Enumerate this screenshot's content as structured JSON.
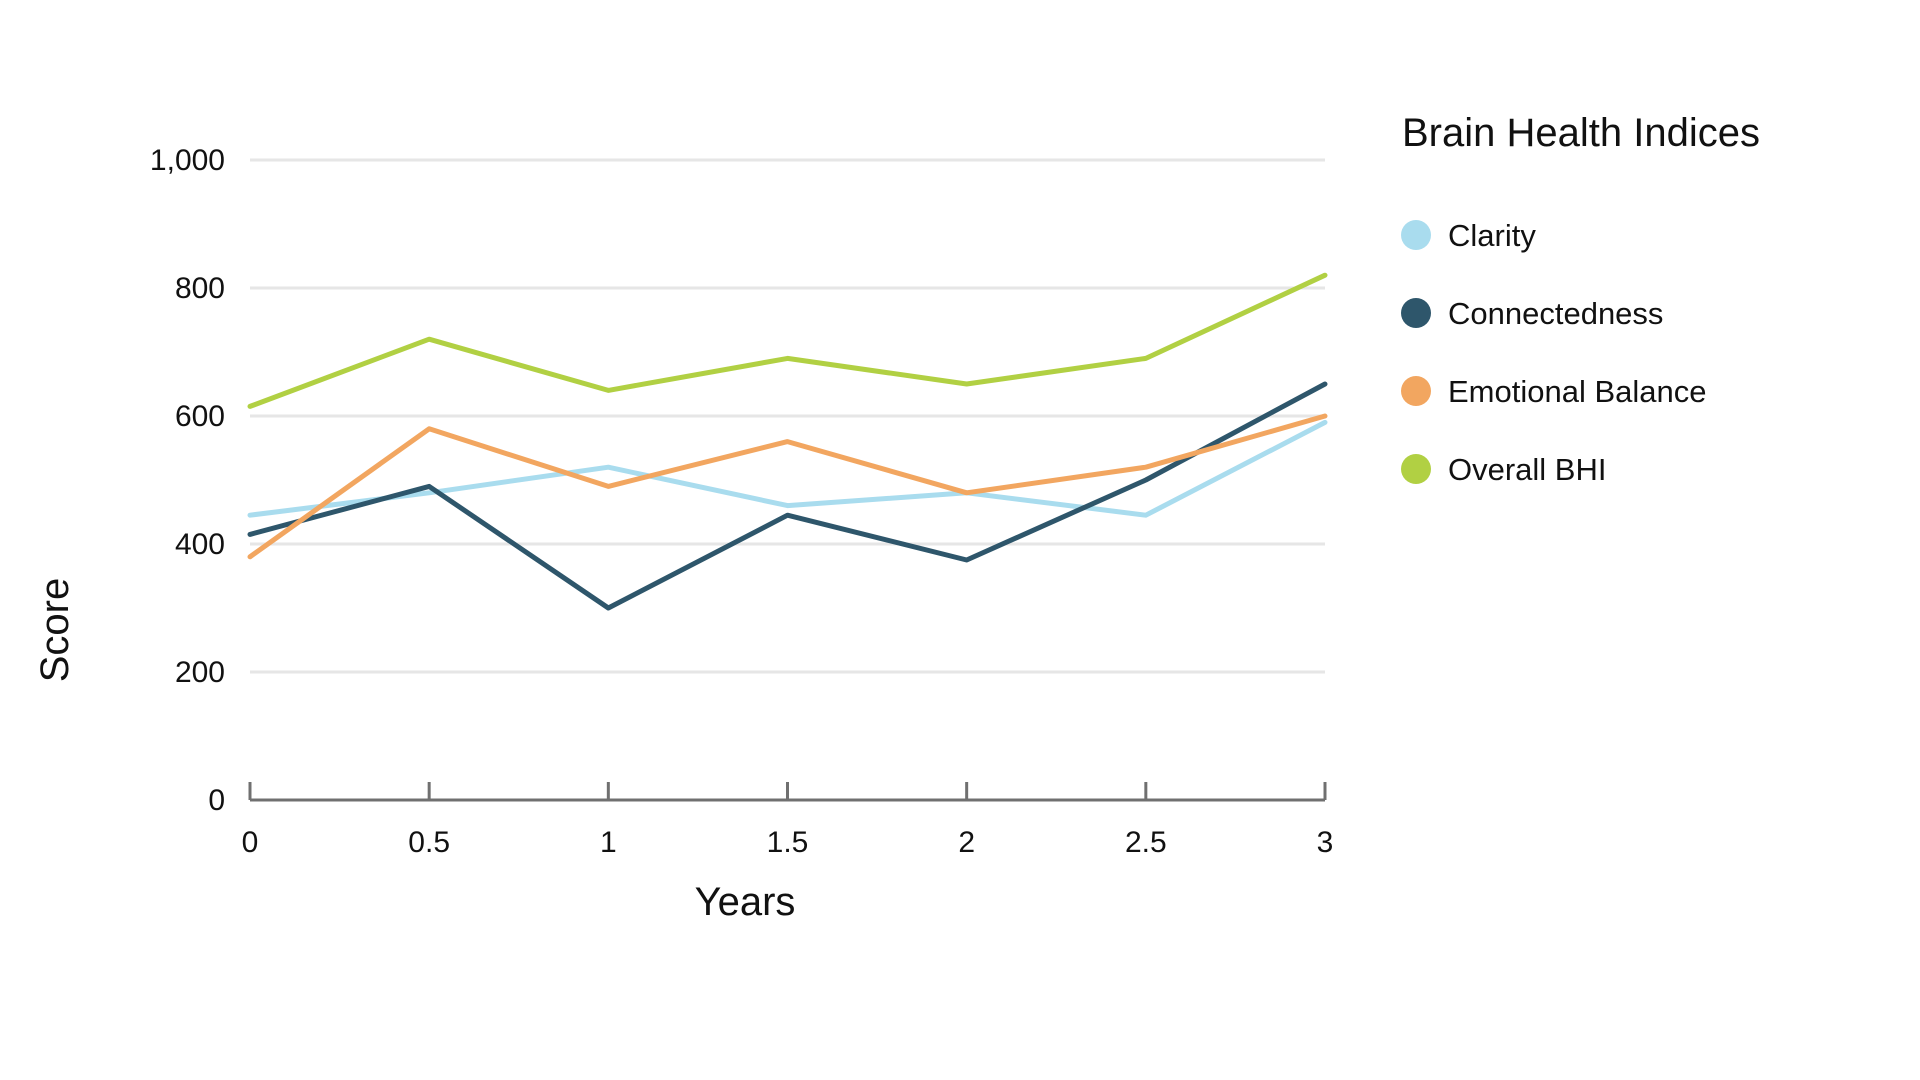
{
  "chart_data": {
    "type": "line",
    "xlabel": "Years",
    "ylabel": "Score",
    "x": [
      0,
      0.5,
      1,
      1.5,
      2,
      2.5,
      3
    ],
    "x_tick_labels": [
      "0",
      "0.5",
      "1",
      "1.5",
      "2",
      "2.5",
      "3"
    ],
    "y_ticks": [
      0,
      200,
      400,
      600,
      800,
      1000
    ],
    "y_tick_labels": [
      "0",
      "200",
      "400",
      "600",
      "800",
      "1,000"
    ],
    "xlim": [
      0,
      3
    ],
    "ylim": [
      0,
      1000
    ],
    "grid": true,
    "legend": {
      "title": "Brain Health Indices",
      "placement": "right"
    },
    "series": [
      {
        "name": "Clarity",
        "color": "#a9dcee",
        "values": [
          445,
          480,
          520,
          460,
          480,
          445,
          590
        ]
      },
      {
        "name": "Connectedness",
        "color": "#2e566b",
        "values": [
          415,
          490,
          300,
          445,
          375,
          500,
          650
        ]
      },
      {
        "name": "Emotional Balance",
        "color": "#f2a660",
        "values": [
          380,
          580,
          490,
          560,
          480,
          520,
          600
        ]
      },
      {
        "name": "Overall BHI",
        "color": "#b1d043",
        "values": [
          615,
          720,
          640,
          690,
          650,
          690,
          820
        ]
      }
    ]
  }
}
